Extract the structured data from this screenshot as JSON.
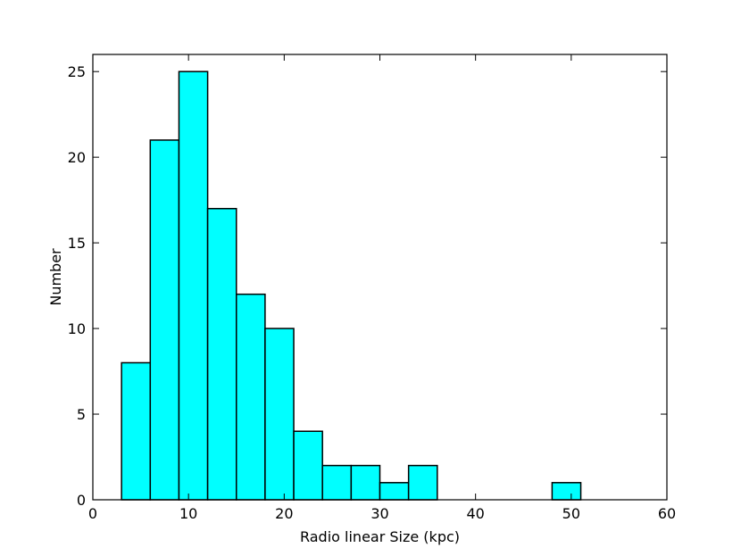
{
  "chart_data": {
    "type": "bar",
    "title": "",
    "xlabel": "Radio linear Size (kpc)",
    "ylabel": "Number",
    "xlim": [
      0,
      60
    ],
    "ylim": [
      0,
      26
    ],
    "xticks": [
      0,
      10,
      20,
      30,
      40,
      50,
      60
    ],
    "yticks": [
      0,
      5,
      10,
      15,
      20,
      25
    ],
    "grid": false,
    "bar_color": "#00ffff",
    "bins": [
      {
        "start": 3,
        "end": 6,
        "count": 8
      },
      {
        "start": 6,
        "end": 9,
        "count": 21
      },
      {
        "start": 9,
        "end": 12,
        "count": 25
      },
      {
        "start": 12,
        "end": 15,
        "count": 17
      },
      {
        "start": 15,
        "end": 18,
        "count": 12
      },
      {
        "start": 18,
        "end": 21,
        "count": 10
      },
      {
        "start": 21,
        "end": 24,
        "count": 4
      },
      {
        "start": 24,
        "end": 27,
        "count": 2
      },
      {
        "start": 27,
        "end": 30,
        "count": 2
      },
      {
        "start": 30,
        "end": 33,
        "count": 1
      },
      {
        "start": 33,
        "end": 36,
        "count": 2
      },
      {
        "start": 48,
        "end": 51,
        "count": 1
      }
    ]
  }
}
